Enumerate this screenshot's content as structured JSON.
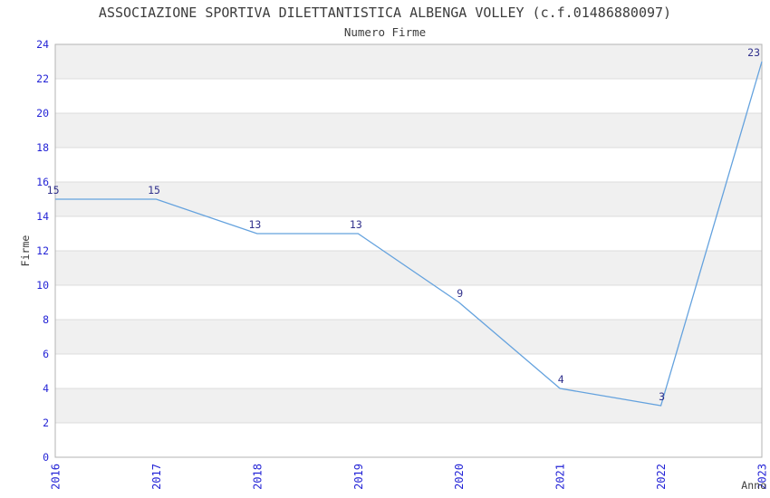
{
  "chart_data": {
    "type": "line",
    "title": "ASSOCIAZIONE SPORTIVA DILETTANTISTICA ALBENGA VOLLEY (c.f.01486880097)",
    "subtitle": "Numero Firme",
    "xlabel": "Anno",
    "ylabel": "Firme",
    "categories": [
      "2016",
      "2017",
      "2018",
      "2019",
      "2020",
      "2021",
      "2022",
      "2023"
    ],
    "values": [
      15,
      15,
      13,
      13,
      9,
      4,
      3,
      23
    ],
    "ylim": [
      0,
      24
    ],
    "ytick_step": 2,
    "yticks": [
      0,
      2,
      4,
      6,
      8,
      10,
      12,
      14,
      16,
      18,
      20,
      22,
      24
    ],
    "grid": "horizontal-bands-alternating",
    "legend": "none",
    "markers": "none",
    "data_labels_visible": true,
    "colors": {
      "line": "#64a2de",
      "band": "#f0f0f0",
      "gridline": "#dcdcdc",
      "border": "#b3b3b3",
      "tick_label": "#2424d6",
      "data_label": "#30308c",
      "text": "#3c3c3c",
      "background": "#ffffff"
    }
  }
}
